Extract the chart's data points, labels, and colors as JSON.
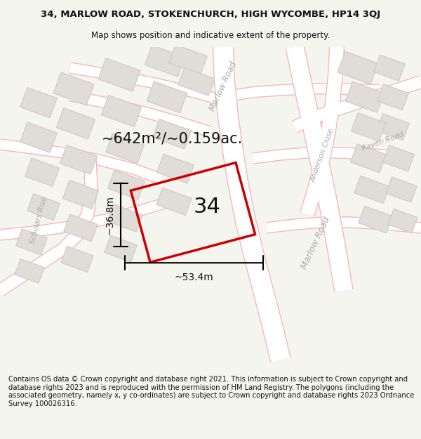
{
  "title_line1": "34, MARLOW ROAD, STOKENCHURCH, HIGH WYCOMBE, HP14 3QJ",
  "title_line2": "Map shows position and indicative extent of the property.",
  "area_text": "~642m²/~0.159ac.",
  "width_label": "~53.4m",
  "height_label": "~36.8m",
  "number_label": "34",
  "footer_text": "Contains OS data © Crown copyright and database right 2021. This information is subject to Crown copyright and database rights 2023 and is reproduced with the permission of HM Land Registry. The polygons (including the associated geometry, namely x, y co-ordinates) are subject to Crown copyright and database rights 2023 Ordnance Survey 100026316.",
  "bg_color": "#f5f5f0",
  "map_bg_color": "#ffffff",
  "road_outline_color": "#f5b8b8",
  "road_fill_color": "#fde8e8",
  "building_fill_color": "#e0dcd8",
  "building_outline_color": "#d0c8c4",
  "highlight_color": "#cc0000",
  "highlight_lw": 2.5,
  "text_color": "#111111",
  "road_label_color": "#aaaaaa",
  "title_fontsize": 9.5,
  "subtitle_fontsize": 8.5,
  "footer_fontsize": 7.2,
  "area_fontsize": 15,
  "number_fontsize": 22,
  "dim_fontsize": 10
}
